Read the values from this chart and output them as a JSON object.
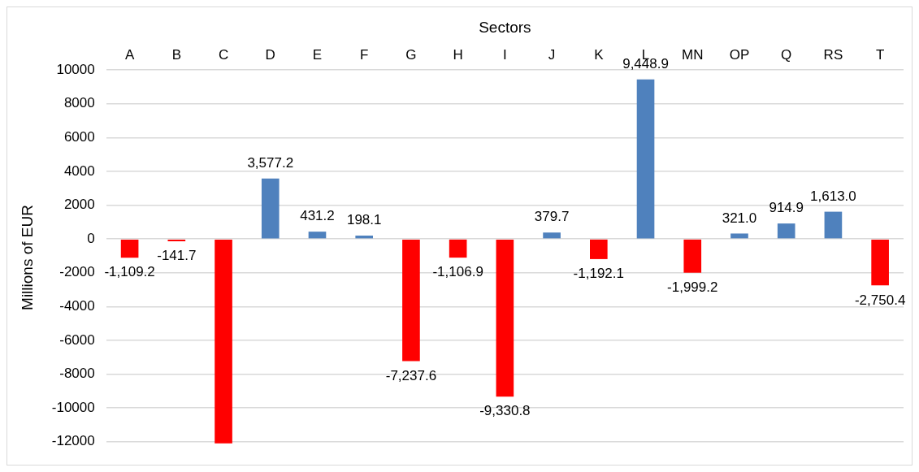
{
  "chart_data": {
    "type": "bar",
    "xlabel": "Sectors",
    "ylabel": "Millions of EUR",
    "categories": [
      "A",
      "B",
      "C",
      "D",
      "E",
      "F",
      "G",
      "H",
      "I",
      "J",
      "K",
      "L",
      "MN",
      "OP",
      "Q",
      "RS",
      "T"
    ],
    "values": [
      -1109.2,
      -141.7,
      -12100,
      3577.2,
      431.2,
      198.1,
      -7237.6,
      -1106.9,
      -9330.8,
      379.7,
      -1192.1,
      9448.9,
      -1999.2,
      321.0,
      914.9,
      1613.0,
      -2750.4
    ],
    "colors": [
      "#ff0000",
      "#ff0000",
      "#ff0000",
      "#4f81bd",
      "#4f81bd",
      "#4f81bd",
      "#ff0000",
      "#ff0000",
      "#ff0000",
      "#4f81bd",
      "#ff0000",
      "#4f81bd",
      "#ff0000",
      "#4f81bd",
      "#4f81bd",
      "#4f81bd",
      "#ff0000"
    ],
    "value_labels": [
      "-1,109.2",
      "-141.7",
      null,
      "3,577.2",
      "431.2",
      "198.1",
      "-7,237.6",
      "-1,106.9",
      "-9,330.8",
      "379.7",
      "-1,192.1",
      "9,448.9",
      "-1,999.2",
      "321.0",
      "914.9",
      "1,613.0",
      "-2,750.4"
    ],
    "ylim": [
      -12200,
      10000
    ],
    "yticks": [
      -12000,
      -10000,
      -8000,
      -6000,
      -4000,
      -2000,
      0,
      2000,
      4000,
      6000,
      8000,
      10000
    ],
    "grid": "y",
    "legend": false
  }
}
